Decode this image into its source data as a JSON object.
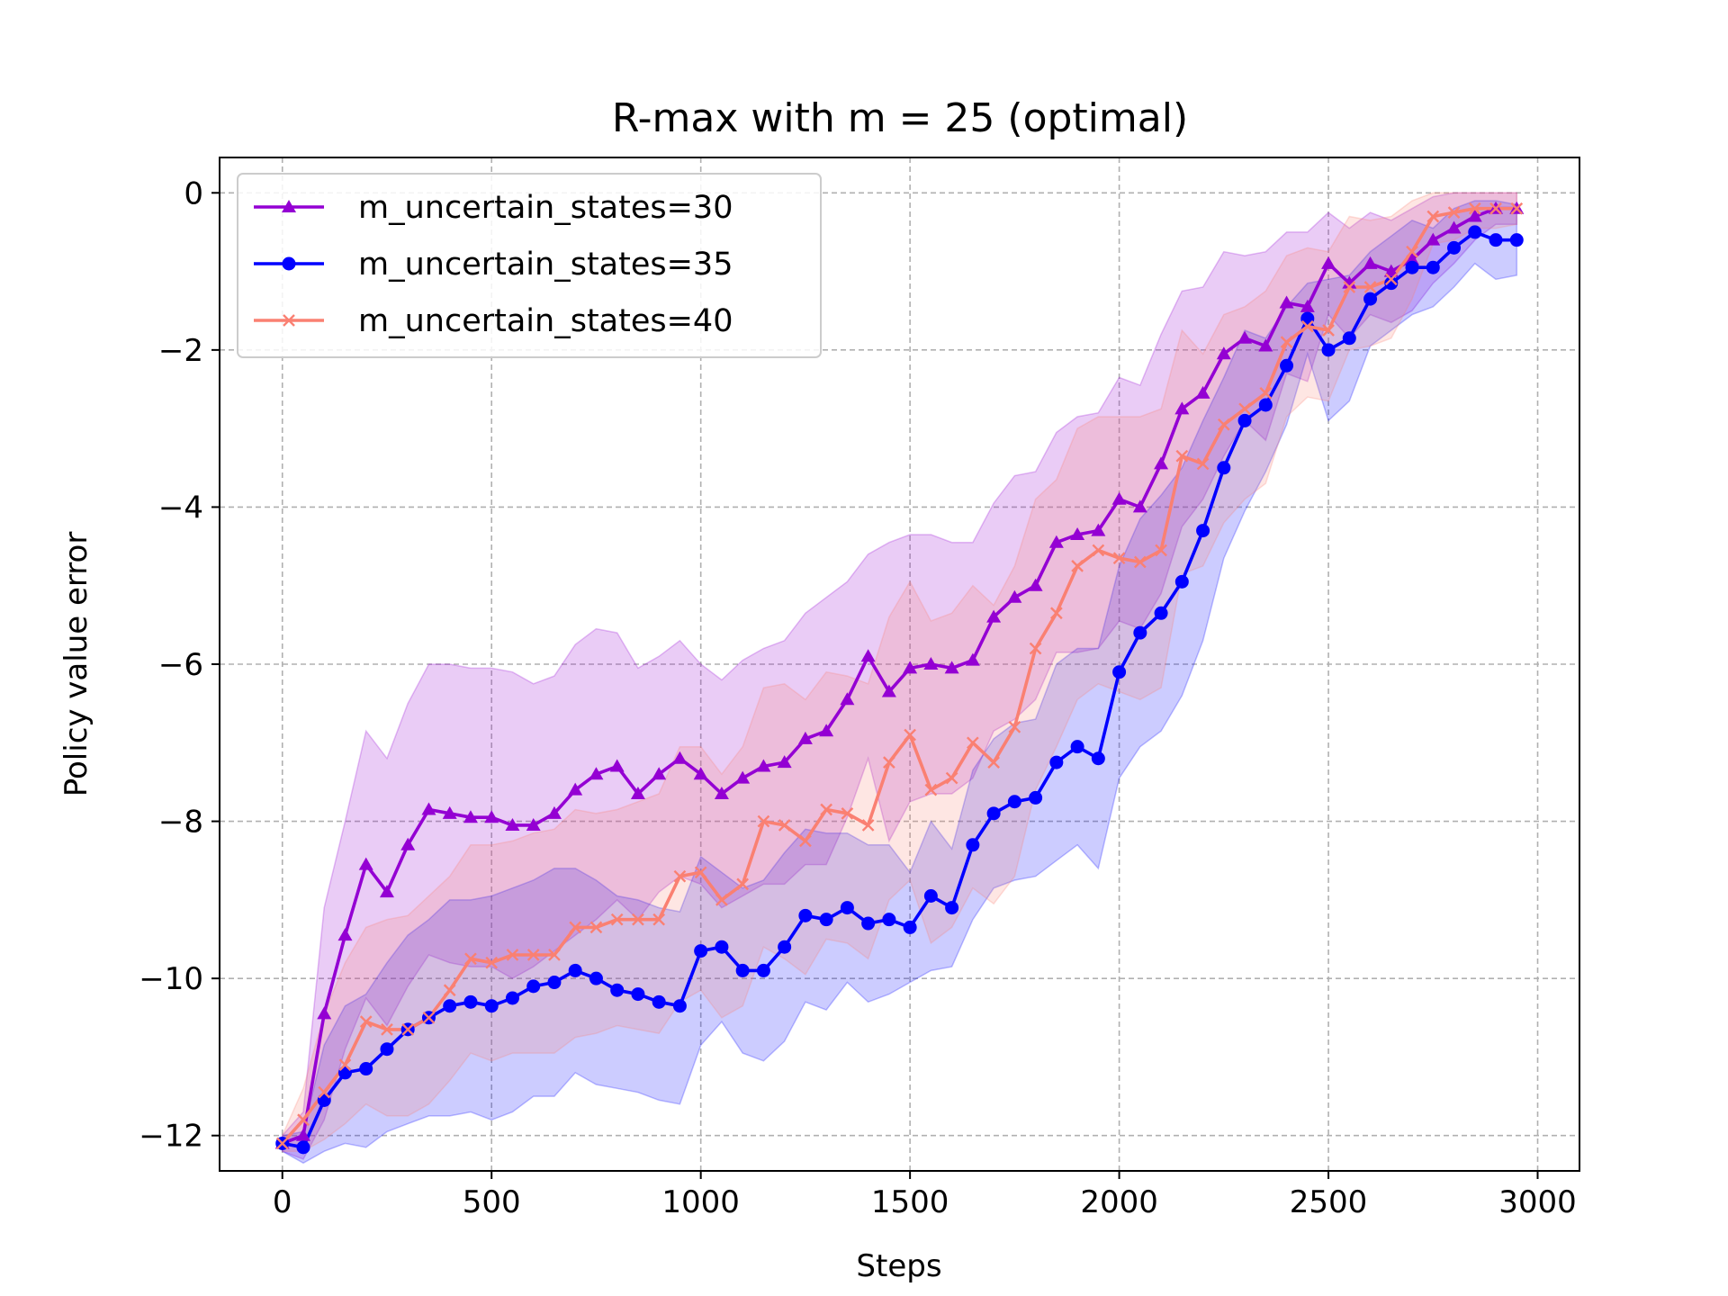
{
  "chart_data": {
    "type": "line",
    "title": "R-max with m = 25 (optimal)",
    "xlabel": "Steps",
    "ylabel": "Policy value error",
    "xlim": [
      -150,
      3100
    ],
    "ylim": [
      -12.45,
      0.45
    ],
    "xticks": [
      0,
      500,
      1000,
      1500,
      2000,
      2500,
      3000
    ],
    "xtick_labels": [
      "0",
      "500",
      "1000",
      "1500",
      "2000",
      "2500",
      "3000"
    ],
    "yticks": [
      0,
      -2,
      -4,
      -6,
      -8,
      -10,
      -12
    ],
    "ytick_labels": [
      "0",
      "−2",
      "−4",
      "−6",
      "−8",
      "−10",
      "−12"
    ],
    "grid": true,
    "legend_position": "upper-left",
    "x": [
      0,
      50,
      100,
      150,
      200,
      250,
      300,
      350,
      400,
      450,
      500,
      550,
      600,
      650,
      700,
      750,
      800,
      850,
      900,
      950,
      1000,
      1050,
      1100,
      1150,
      1200,
      1250,
      1300,
      1350,
      1400,
      1450,
      1500,
      1550,
      1600,
      1650,
      1700,
      1750,
      1800,
      1850,
      1900,
      1950,
      2000,
      2050,
      2100,
      2150,
      2200,
      2250,
      2300,
      2350,
      2400,
      2450,
      2500,
      2550,
      2600,
      2650,
      2700,
      2750,
      2800,
      2850,
      2900,
      2950
    ],
    "series": [
      {
        "name": "m_uncertain_states=30",
        "color": "#9400d3",
        "marker": "triangle",
        "values": [
          -12.1,
          -12.0,
          -10.45,
          -9.45,
          -8.55,
          -8.9,
          -8.3,
          -7.85,
          -7.9,
          -7.95,
          -7.95,
          -8.05,
          -8.05,
          -7.9,
          -7.6,
          -7.4,
          -7.3,
          -7.65,
          -7.4,
          -7.2,
          -7.4,
          -7.65,
          -7.45,
          -7.3,
          -7.25,
          -6.95,
          -6.85,
          -6.45,
          -5.9,
          -6.35,
          -6.05,
          -6.0,
          -6.05,
          -5.95,
          -5.4,
          -5.15,
          -5.0,
          -4.45,
          -4.35,
          -4.3,
          -3.9,
          -4.0,
          -3.45,
          -2.75,
          -2.55,
          -2.05,
          -1.85,
          -1.95,
          -1.4,
          -1.45,
          -0.9,
          -1.15,
          -0.9,
          -1.0,
          -0.85,
          -0.6,
          -0.45,
          -0.3,
          -0.2,
          -0.2
        ],
        "band_upper": [
          -12.0,
          -11.7,
          -9.1,
          -8.0,
          -6.85,
          -7.2,
          -6.5,
          -6.0,
          -6.0,
          -6.05,
          -6.05,
          -6.1,
          -6.25,
          -6.15,
          -5.75,
          -5.55,
          -5.6,
          -6.05,
          -5.9,
          -5.7,
          -6.0,
          -6.2,
          -5.95,
          -5.8,
          -5.7,
          -5.35,
          -5.15,
          -4.95,
          -4.6,
          -4.45,
          -4.35,
          -4.35,
          -4.45,
          -4.45,
          -3.95,
          -3.6,
          -3.55,
          -3.05,
          -2.85,
          -2.8,
          -2.35,
          -2.45,
          -1.8,
          -1.25,
          -1.2,
          -0.75,
          -0.8,
          -0.75,
          -0.5,
          -0.5,
          -0.25,
          -0.45,
          -0.25,
          -0.35,
          -0.2,
          -0.05,
          0.0,
          0.0,
          0.0,
          0.0
        ],
        "band_lower": [
          -12.2,
          -12.3,
          -11.8,
          -10.9,
          -10.25,
          -10.6,
          -10.1,
          -9.7,
          -9.8,
          -9.85,
          -9.85,
          -10.0,
          -9.85,
          -9.65,
          -9.45,
          -9.25,
          -9.0,
          -9.25,
          -8.9,
          -8.7,
          -8.8,
          -9.1,
          -8.95,
          -8.8,
          -8.8,
          -8.55,
          -8.55,
          -7.95,
          -7.2,
          -8.25,
          -7.75,
          -7.65,
          -7.65,
          -7.45,
          -6.85,
          -6.7,
          -6.45,
          -5.85,
          -5.85,
          -5.8,
          -5.45,
          -5.55,
          -5.1,
          -4.25,
          -3.9,
          -3.35,
          -2.9,
          -3.15,
          -2.3,
          -2.4,
          -1.55,
          -1.85,
          -1.55,
          -1.65,
          -1.5,
          -1.15,
          -0.9,
          -0.6,
          -0.4,
          -0.4
        ]
      },
      {
        "name": "m_uncertain_states=35",
        "color": "#0000ff",
        "marker": "circle",
        "values": [
          -12.1,
          -12.15,
          -11.55,
          -11.2,
          -11.15,
          -10.9,
          -10.65,
          -10.5,
          -10.35,
          -10.3,
          -10.35,
          -10.25,
          -10.1,
          -10.05,
          -9.9,
          -10.0,
          -10.15,
          -10.2,
          -10.3,
          -10.35,
          -9.65,
          -9.6,
          -9.9,
          -9.9,
          -9.6,
          -9.2,
          -9.25,
          -9.1,
          -9.3,
          -9.25,
          -9.35,
          -8.95,
          -9.1,
          -8.3,
          -7.9,
          -7.75,
          -7.7,
          -7.25,
          -7.05,
          -7.2,
          -6.1,
          -5.6,
          -5.35,
          -4.95,
          -4.3,
          -3.5,
          -2.9,
          -2.7,
          -2.2,
          -1.6,
          -2.0,
          -1.85,
          -1.35,
          -1.15,
          -0.95,
          -0.95,
          -0.7,
          -0.5,
          -0.6,
          -0.6
        ],
        "band_upper": [
          -12.0,
          -11.95,
          -10.85,
          -10.35,
          -10.2,
          -9.8,
          -9.45,
          -9.25,
          -9.0,
          -9.0,
          -8.95,
          -8.85,
          -8.75,
          -8.6,
          -8.6,
          -8.75,
          -8.95,
          -9.0,
          -9.1,
          -9.15,
          -8.45,
          -8.65,
          -8.85,
          -8.75,
          -8.4,
          -8.1,
          -8.15,
          -8.15,
          -8.3,
          -8.3,
          -8.65,
          -8.0,
          -8.35,
          -7.35,
          -6.95,
          -6.75,
          -6.7,
          -6.0,
          -5.8,
          -5.8,
          -4.75,
          -4.15,
          -3.85,
          -3.5,
          -2.9,
          -2.35,
          -1.75,
          -1.85,
          -1.45,
          -1.15,
          -1.1,
          -1.05,
          -0.75,
          -0.55,
          -0.35,
          -0.45,
          -0.2,
          -0.1,
          -0.1,
          -0.15
        ],
        "band_lower": [
          -12.2,
          -12.35,
          -12.2,
          -12.1,
          -12.15,
          -11.95,
          -11.85,
          -11.75,
          -11.75,
          -11.7,
          -11.8,
          -11.7,
          -11.5,
          -11.5,
          -11.2,
          -11.35,
          -11.4,
          -11.45,
          -11.55,
          -11.6,
          -10.85,
          -10.55,
          -10.95,
          -11.05,
          -10.8,
          -10.3,
          -10.4,
          -10.05,
          -10.3,
          -10.2,
          -10.05,
          -9.9,
          -9.85,
          -9.25,
          -8.85,
          -8.75,
          -8.7,
          -8.5,
          -8.3,
          -8.6,
          -7.45,
          -7.05,
          -6.85,
          -6.4,
          -5.7,
          -4.65,
          -4.05,
          -3.55,
          -2.95,
          -2.05,
          -2.9,
          -2.65,
          -1.95,
          -1.75,
          -1.55,
          -1.45,
          -1.2,
          -0.9,
          -1.1,
          -1.05
        ]
      },
      {
        "name": "m_uncertain_states=40",
        "color": "#fa8072",
        "marker": "x",
        "values": [
          -12.1,
          -11.8,
          -11.45,
          -11.1,
          -10.55,
          -10.65,
          -10.65,
          -10.5,
          -10.15,
          -9.75,
          -9.8,
          -9.7,
          -9.7,
          -9.7,
          -9.35,
          -9.35,
          -9.25,
          -9.25,
          -9.25,
          -8.7,
          -8.65,
          -9.0,
          -8.8,
          -8.0,
          -8.05,
          -8.25,
          -7.85,
          -7.9,
          -8.05,
          -7.25,
          -6.9,
          -7.6,
          -7.45,
          -7.0,
          -7.25,
          -6.8,
          -5.8,
          -5.35,
          -4.75,
          -4.55,
          -4.65,
          -4.7,
          -4.55,
          -3.35,
          -3.45,
          -2.95,
          -2.75,
          -2.55,
          -1.9,
          -1.7,
          -1.75,
          -1.2,
          -1.2,
          -1.1,
          -0.75,
          -0.3,
          -0.25,
          -0.2,
          -0.2,
          -0.2
        ],
        "band_upper": [
          -12.0,
          -11.4,
          -10.45,
          -9.8,
          -9.35,
          -9.25,
          -9.2,
          -8.95,
          -8.7,
          -8.3,
          -8.3,
          -8.25,
          -8.15,
          -8.1,
          -7.85,
          -7.9,
          -7.85,
          -7.75,
          -7.65,
          -7.05,
          -7.05,
          -7.4,
          -7.05,
          -6.3,
          -6.25,
          -6.45,
          -6.1,
          -6.15,
          -6.25,
          -5.4,
          -4.95,
          -5.45,
          -5.35,
          -5.0,
          -5.25,
          -4.75,
          -3.9,
          -3.65,
          -3.0,
          -2.85,
          -2.85,
          -2.85,
          -2.75,
          -1.75,
          -2.05,
          -1.55,
          -1.45,
          -1.25,
          -0.8,
          -0.7,
          -0.75,
          -0.3,
          -0.35,
          -0.3,
          -0.1,
          0.0,
          0.0,
          0.0,
          0.0,
          0.0
        ],
        "band_lower": [
          -12.2,
          -12.2,
          -12.05,
          -11.85,
          -11.6,
          -11.75,
          -11.75,
          -11.6,
          -11.3,
          -10.95,
          -11.05,
          -10.95,
          -10.95,
          -10.95,
          -10.75,
          -10.7,
          -10.6,
          -10.65,
          -10.7,
          -10.3,
          -10.15,
          -10.5,
          -10.35,
          -9.6,
          -9.75,
          -9.95,
          -9.5,
          -9.55,
          -9.75,
          -9.0,
          -8.75,
          -9.55,
          -9.35,
          -8.85,
          -9.05,
          -8.7,
          -7.6,
          -7.05,
          -6.45,
          -6.25,
          -6.35,
          -6.45,
          -6.3,
          -4.85,
          -4.75,
          -4.2,
          -3.9,
          -3.7,
          -2.85,
          -2.6,
          -2.65,
          -2.0,
          -1.95,
          -1.85,
          -1.35,
          -0.65,
          -0.6,
          -0.45,
          -0.45,
          -0.4
        ]
      }
    ]
  }
}
